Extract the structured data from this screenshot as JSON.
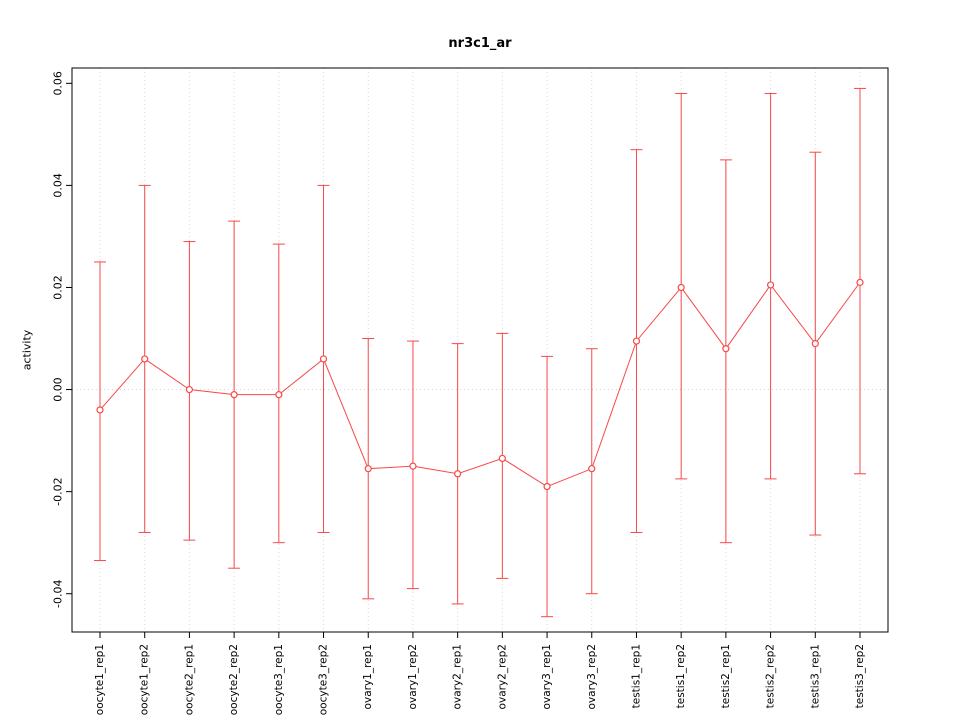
{
  "page": {
    "background": "#ffffff"
  },
  "chart_data": {
    "type": "line",
    "title": "nr3c1_ar",
    "xlabel": "",
    "ylabel": "activity",
    "grid": true,
    "legend": "none",
    "point_style": "open-circle",
    "colors": {
      "series": "#f74848",
      "grid": "#d8d8d8",
      "axis": "#000000",
      "text": "#000000",
      "point_fill": "#ffffff"
    },
    "categories": [
      "oocyte1_rep1",
      "oocyte1_rep2",
      "oocyte2_rep1",
      "oocyte2_rep2",
      "oocyte3_rep1",
      "oocyte3_rep2",
      "ovary1_rep1",
      "ovary1_rep2",
      "ovary2_rep1",
      "ovary2_rep2",
      "ovary3_rep1",
      "ovary3_rep2",
      "testis1_rep1",
      "testis1_rep2",
      "testis2_rep1",
      "testis2_rep2",
      "testis3_rep1",
      "testis3_rep2"
    ],
    "series": [
      {
        "name": "activity",
        "values": [
          -0.004,
          0.006,
          0.0,
          -0.001,
          -0.001,
          0.006,
          -0.0155,
          -0.015,
          -0.0165,
          -0.0135,
          -0.019,
          -0.0155,
          0.0095,
          0.02,
          0.008,
          0.0205,
          0.009,
          0.021
        ],
        "upper": [
          0.025,
          0.04,
          0.029,
          0.033,
          0.0285,
          0.04,
          0.01,
          0.0095,
          0.009,
          0.011,
          0.0065,
          0.008,
          0.047,
          0.058,
          0.045,
          0.058,
          0.0465,
          0.059
        ],
        "lower": [
          -0.0335,
          -0.028,
          -0.0295,
          -0.035,
          -0.03,
          -0.028,
          -0.041,
          -0.039,
          -0.042,
          -0.037,
          -0.0445,
          -0.04,
          -0.028,
          -0.0175,
          -0.03,
          -0.0175,
          -0.0285,
          -0.0165
        ]
      }
    ],
    "ylim": [
      -0.0475,
      0.063
    ],
    "ytick_values": [
      -0.04,
      -0.02,
      0.0,
      0.02,
      0.04,
      0.06
    ],
    "ytick_labels": [
      "-0.04",
      "-0.02",
      "0.00",
      "0.02",
      "0.04",
      "0.06"
    ],
    "zero_line": 0.0
  }
}
